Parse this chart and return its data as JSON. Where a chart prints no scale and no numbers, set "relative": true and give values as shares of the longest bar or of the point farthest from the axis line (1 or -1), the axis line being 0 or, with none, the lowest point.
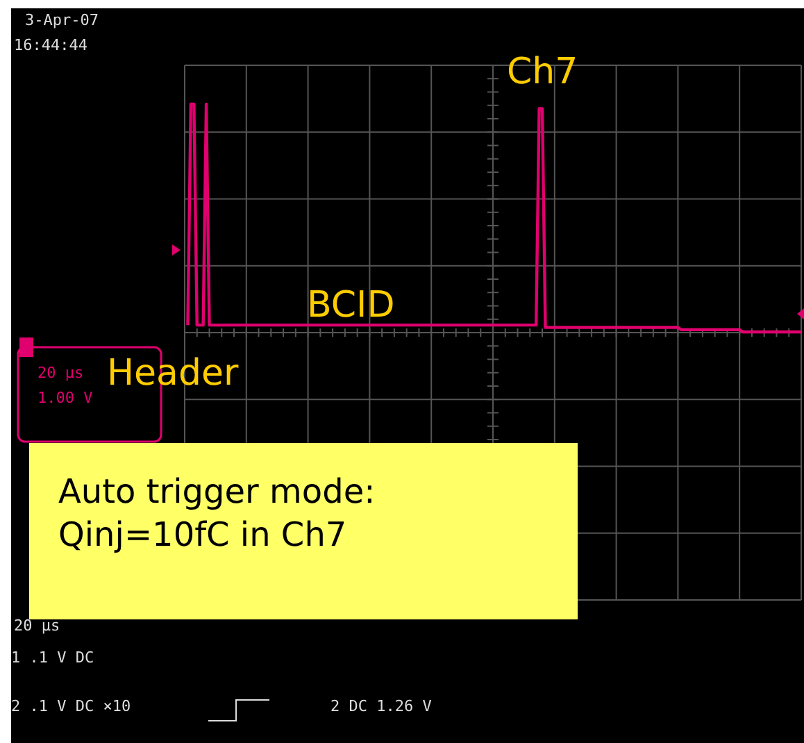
{
  "chart_data": {
    "type": "line",
    "relative": true,
    "grid": true,
    "categories": [
      null,
      null,
      null,
      null,
      null,
      null,
      null,
      null,
      null,
      null,
      null,
      null,
      null,
      null,
      null,
      null,
      null,
      null,
      null,
      null,
      null,
      null,
      null,
      null,
      null,
      null,
      null,
      null,
      null,
      null,
      null,
      null,
      null,
      null,
      null,
      null,
      null,
      null,
      null,
      null,
      null,
      null,
      null,
      null,
      null,
      null,
      null,
      null,
      null,
      null,
      null,
      null,
      null,
      null,
      null,
      null,
      null,
      null,
      null,
      null,
      null,
      null,
      null,
      null,
      null,
      null,
      null,
      null,
      null,
      null,
      null,
      null,
      null,
      null,
      null,
      null,
      null,
      null,
      null,
      null,
      null,
      null,
      null,
      null,
      null,
      null,
      null,
      null,
      null,
      null,
      null,
      null,
      null,
      null,
      null,
      null,
      null,
      null,
      null,
      null,
      null,
      null,
      null,
      null,
      null,
      null,
      null,
      null,
      null,
      null,
      null,
      null,
      null,
      null,
      null,
      null,
      null,
      null,
      null,
      null,
      null,
      null,
      null,
      null,
      null,
      null,
      null,
      null,
      null,
      null,
      null,
      null,
      null,
      null,
      null,
      null,
      null,
      null,
      null,
      null,
      null,
      null,
      null,
      null,
      null,
      null,
      null,
      null,
      null,
      null,
      null,
      null,
      null,
      null,
      null,
      null,
      null,
      null,
      null,
      null,
      null,
      null,
      null,
      null,
      null,
      null,
      null,
      null,
      null,
      null,
      null,
      null,
      null,
      null,
      null,
      null,
      null,
      null,
      null,
      null,
      null,
      null,
      null,
      null,
      null,
      null,
      null,
      null,
      null,
      null,
      null,
      null,
      null,
      null,
      null,
      null,
      null,
      null,
      null,
      null,
      null
    ],
    "series": [
      {
        "color": "#e0006e",
        "values": [
          null,
          0.03,
          1,
          1,
          0.03,
          0.03,
          0.03,
          1,
          0.03,
          0.03,
          0.03,
          0.03,
          0.03,
          0.03,
          0.03,
          0.03,
          0.03,
          0.03,
          0.03,
          0.03,
          0.03,
          0.03,
          0.03,
          0.03,
          0.03,
          0.03,
          0.03,
          0.03,
          0.03,
          0.03,
          0.03,
          0.03,
          0.03,
          0.03,
          0.03,
          0.03,
          0.03,
          0.03,
          0.03,
          0.03,
          0.03,
          0.03,
          0.03,
          0.03,
          0.03,
          0.03,
          0.03,
          0.03,
          0.03,
          0.03,
          0.03,
          0.03,
          0.03,
          0.03,
          0.03,
          0.03,
          0.03,
          0.03,
          0.03,
          0.03,
          0.03,
          0.03,
          0.03,
          0.03,
          0.03,
          0.03,
          0.03,
          0.03,
          0.03,
          0.03,
          0.03,
          0.03,
          0.03,
          0.03,
          0.03,
          0.03,
          0.03,
          0.03,
          0.03,
          0.03,
          0.03,
          0.03,
          0.03,
          0.03,
          0.03,
          0.03,
          0.03,
          0.03,
          0.03,
          0.03,
          0.03,
          0.03,
          0.03,
          0.03,
          0.03,
          0.03,
          0.03,
          0.03,
          0.03,
          0.03,
          0.03,
          0.03,
          0.03,
          0.03,
          0.03,
          0.03,
          0.03,
          0.03,
          0.03,
          0.03,
          0.03,
          0.03,
          0.03,
          0.03,
          0.03,
          0.98,
          0.98,
          0.02,
          0.02,
          0.02,
          0.02,
          0.02,
          0.02,
          0.02,
          0.02,
          0.02,
          0.02,
          0.02,
          0.02,
          0.02,
          0.02,
          0.02,
          0.02,
          0.02,
          0.02,
          0.02,
          0.02,
          0.02,
          0.02,
          0.02,
          0.02,
          0.02,
          0.02,
          0.02,
          0.02,
          0.02,
          0.02,
          0.02,
          0.02,
          0.02,
          0.02,
          0.02,
          0.02,
          0.02,
          0.02,
          0.02,
          0.02,
          0.02,
          0.02,
          0.02,
          0.02,
          0.01,
          0.01,
          0.01,
          0.01,
          0.01,
          0.01,
          0.01,
          0.01,
          0.01,
          0.01,
          0.01,
          0.01,
          0.01,
          0.01,
          0.01,
          0.01,
          0.01,
          0.01,
          0.01,
          0.01,
          0,
          0,
          0,
          0,
          0,
          0,
          0,
          0,
          0,
          0,
          0,
          0,
          0,
          0,
          0,
          0,
          0,
          0,
          0,
          0
        ]
      }
    ],
    "annotations": [
      "3-Apr-07",
      "16:44:44",
      "Header",
      "BCID",
      "Ch7",
      "20 μs",
      "1.00 V",
      "Auto trigger mode:\nQinj=10fC in Ch7",
      "20 μs",
      "1 .1 V DC",
      "2 .1 V DC ×10",
      "2 DC 1.26 V"
    ]
  }
}
